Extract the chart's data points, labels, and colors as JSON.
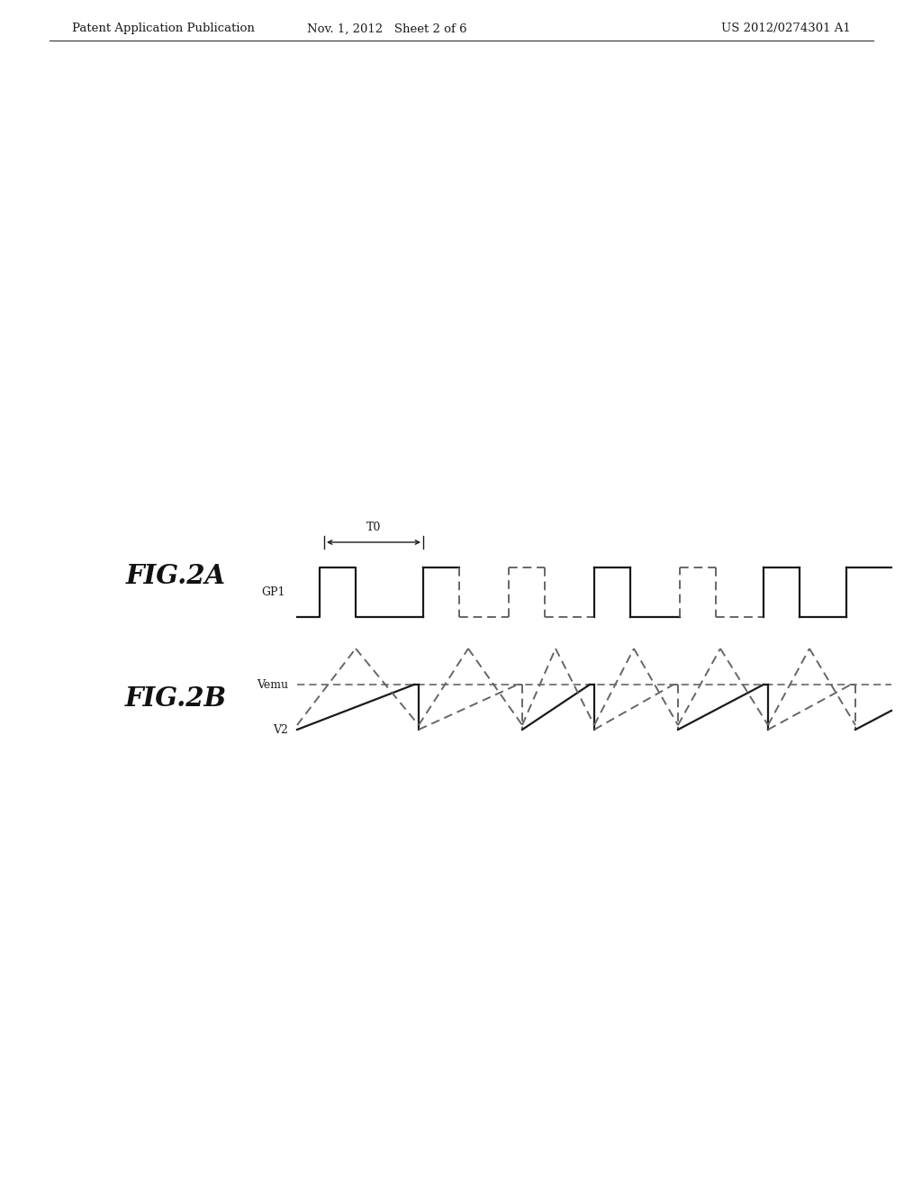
{
  "background_color": "#ffffff",
  "header_left": "Patent Application Publication",
  "header_mid": "Nov. 1, 2012   Sheet 2 of 6",
  "header_right": "US 2012/0274301 A1",
  "fig2a_label": "FIG.2A",
  "fig2b_label": "FIG.2B",
  "gp1_label": "GP1",
  "vemu_label": "Vemu",
  "v2_label": "V2",
  "t0_label": "T0"
}
